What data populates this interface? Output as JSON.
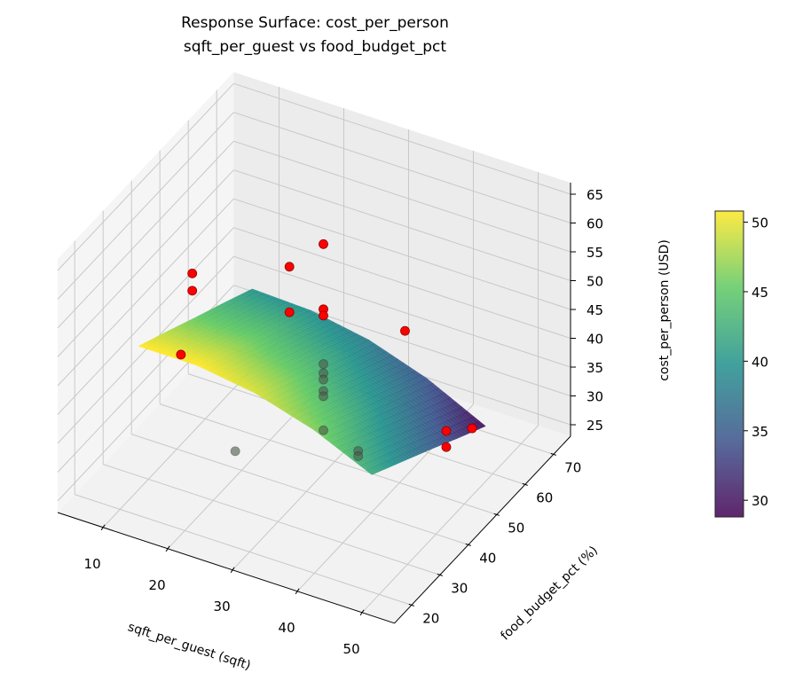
{
  "chart_data": {
    "type": "surface3d-scatter",
    "title": "Response Surface: cost_per_person",
    "subtitle": "sqft_per_guest vs food_budget_pct",
    "xlabel": "sqft_per_guest (sqft)",
    "ylabel": "food_budget_pct (%)",
    "zlabel": "cost_per_person (USD)",
    "xlim": [
      3,
      55
    ],
    "ylim": [
      14,
      76
    ],
    "zlim": [
      23,
      67
    ],
    "xticks": [
      10,
      20,
      30,
      40,
      50
    ],
    "yticks": [
      20,
      30,
      40,
      50,
      60,
      70
    ],
    "zticks": [
      25,
      30,
      35,
      40,
      45,
      50,
      55,
      60,
      65
    ],
    "grid": true,
    "surface": {
      "colormap": "viridis",
      "x_range": [
        12,
        48
      ],
      "y_range": [
        22,
        62
      ],
      "z_grid": [
        [
          51.0,
          48.3,
          45.5,
          42.8,
          40.0
        ],
        [
          51.0,
          48.2,
          45.3,
          42.5,
          39.6
        ],
        [
          49.5,
          46.6,
          43.6,
          40.7,
          37.8
        ],
        [
          46.5,
          43.5,
          40.4,
          37.4,
          34.4
        ],
        [
          42.0,
          38.9,
          35.8,
          32.6,
          29.5
        ]
      ]
    },
    "scatter": {
      "color": "#ff0000",
      "points": [
        {
          "x": 30,
          "y": 46,
          "z": 62.8
        },
        {
          "x": 23,
          "y": 50,
          "z": 54.2
        },
        {
          "x": 8,
          "y": 50,
          "z": 47.5
        },
        {
          "x": 8,
          "y": 50,
          "z": 44.5
        },
        {
          "x": 23,
          "y": 50,
          "z": 46.3
        },
        {
          "x": 30,
          "y": 46,
          "z": 51.5
        },
        {
          "x": 30,
          "y": 46,
          "z": 50.4
        },
        {
          "x": 42.6,
          "y": 46,
          "z": 52.4
        },
        {
          "x": 8,
          "y": 46,
          "z": 35.5
        },
        {
          "x": 30,
          "y": 46,
          "z": 42.0
        },
        {
          "x": 30,
          "y": 46,
          "z": 40.4
        },
        {
          "x": 30,
          "y": 46,
          "z": 39.3
        },
        {
          "x": 30,
          "y": 46,
          "z": 37.3
        },
        {
          "x": 30,
          "y": 46,
          "z": 36.4
        },
        {
          "x": 30,
          "y": 46,
          "z": 30.5
        },
        {
          "x": 23.4,
          "y": 30,
          "z": 32.8
        },
        {
          "x": 38,
          "y": 40,
          "z": 33.0
        },
        {
          "x": 38,
          "y": 40,
          "z": 32.1
        },
        {
          "x": 51.6,
          "y": 40,
          "z": 41.5
        },
        {
          "x": 53.4,
          "y": 45,
          "z": 40.0
        },
        {
          "x": 51.6,
          "y": 40,
          "z": 38.7
        }
      ]
    },
    "colorbar": {
      "range": [
        28.8,
        50.8
      ],
      "ticks": [
        30,
        35,
        40,
        45,
        50
      ]
    }
  }
}
